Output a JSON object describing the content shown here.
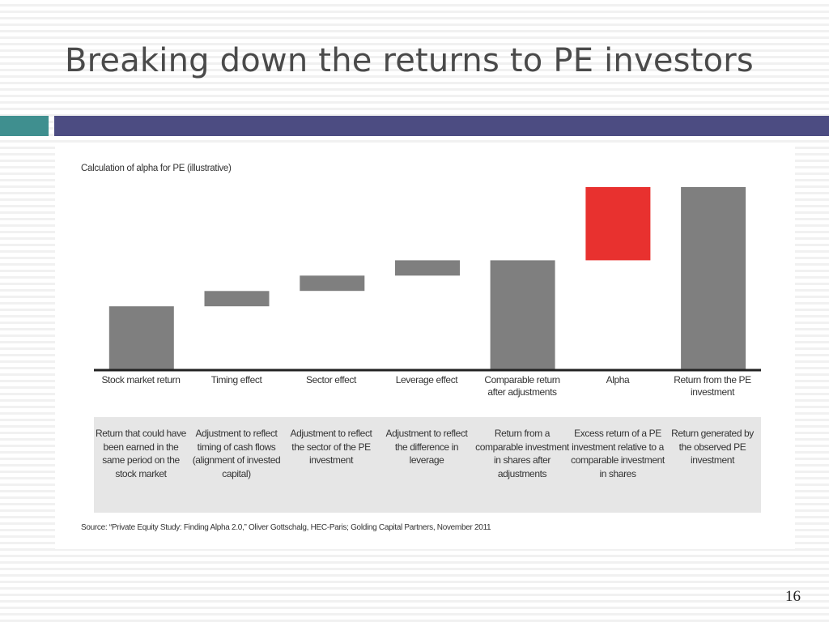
{
  "slide": {
    "title": "Breaking down the returns to PE investors",
    "page_number": "16",
    "accent_colors": {
      "teal": "#3f8f8f",
      "navy": "#4c4c82"
    }
  },
  "figure": {
    "caption": "Calculation of alpha for PE (illustrative)",
    "source": "Source: “Private Equity Study: Finding Alpha 2.0,” Oliver Gottschalg, HEC-Paris; Golding Capital Partners, November 2011",
    "descriptions": [
      "Return that could have been earned in the same period on the stock market",
      "Adjustment to reflect timing of cash flows (alignment of invested capital)",
      "Adjustment to reflect the sector of the PE investment",
      "Adjustment to reflect the difference in leverage",
      "Return from a comparable investment in shares after adjustments",
      "Excess return of a PE investment relative to a comparable investment in shares",
      "Return generated by the observed PE investment"
    ]
  },
  "chart_data": {
    "type": "bar",
    "subtype": "waterfall",
    "title": "Calculation of alpha for PE (illustrative)",
    "categories": [
      "Stock market return",
      "Timing effect",
      "Sector effect",
      "Leverage effect",
      "Comparable return after adjustments",
      "Alpha",
      "Return from the PE investment"
    ],
    "bars": [
      {
        "start": 0,
        "end": 37,
        "kind": "total",
        "color": "#7f7f7f"
      },
      {
        "start": 37,
        "end": 46,
        "kind": "delta",
        "color": "#7f7f7f"
      },
      {
        "start": 46,
        "end": 55,
        "kind": "delta",
        "color": "#7f7f7f"
      },
      {
        "start": 55,
        "end": 64,
        "kind": "delta",
        "color": "#7f7f7f"
      },
      {
        "start": 0,
        "end": 64,
        "kind": "total",
        "color": "#7f7f7f"
      },
      {
        "start": 64,
        "end": 107,
        "kind": "delta",
        "color": "#e8312f"
      },
      {
        "start": 0,
        "end": 107,
        "kind": "total",
        "color": "#7f7f7f"
      }
    ],
    "ylim": [
      0,
      107
    ],
    "axis_values": false,
    "grid": false,
    "legend": false
  }
}
